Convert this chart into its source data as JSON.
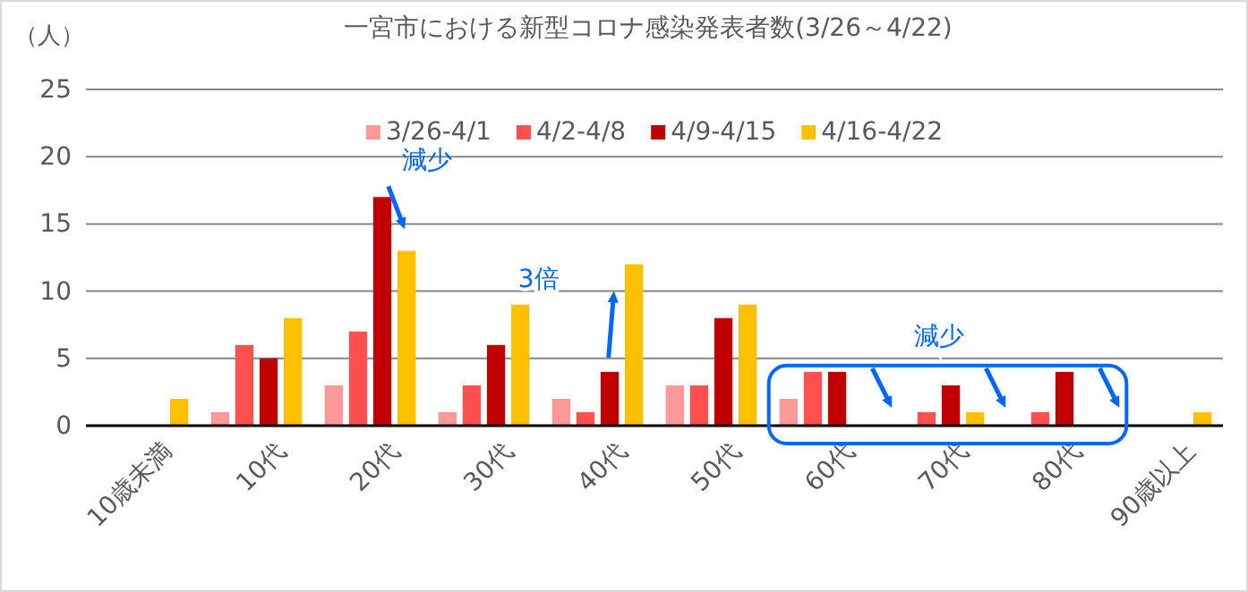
{
  "chart_data": {
    "type": "bar",
    "title": "一宮市における新型コロナ感染発表者数(3/26～4/22)",
    "ylabel": "（人）",
    "categories": [
      "10歳未満",
      "10代",
      "20代",
      "30代",
      "40代",
      "50代",
      "60代",
      "70代",
      "80代",
      "90歳以上"
    ],
    "series": [
      {
        "name": "3/26-4/1",
        "color": "#ff9999",
        "values": [
          0,
          1,
          3,
          1,
          2,
          3,
          2,
          0,
          0,
          0
        ]
      },
      {
        "name": "4/2-4/8",
        "color": "#ff5050",
        "values": [
          0,
          6,
          7,
          3,
          1,
          3,
          4,
          1,
          1,
          0
        ]
      },
      {
        "name": "4/9-4/15",
        "color": "#c00000",
        "values": [
          0,
          5,
          17,
          6,
          4,
          8,
          4,
          3,
          4,
          0
        ]
      },
      {
        "name": "4/16-4/22",
        "color": "#ffc000",
        "values": [
          2,
          8,
          13,
          9,
          12,
          9,
          0,
          1,
          0,
          1
        ]
      }
    ],
    "ylim": [
      0,
      25
    ],
    "yticks": [
      0,
      5,
      10,
      15,
      20,
      25
    ],
    "grid": "y",
    "legend": "top",
    "annotations": [
      "減少",
      "3倍",
      "減少"
    ]
  }
}
